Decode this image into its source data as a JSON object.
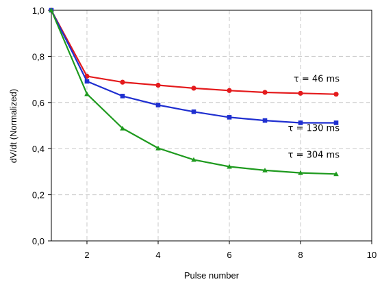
{
  "chart_data": {
    "type": "line",
    "title": "",
    "xlabel": "Pulse number",
    "ylabel": "dV/dt (Normalized)",
    "xlim": [
      1,
      10
    ],
    "ylim": [
      0,
      1
    ],
    "x_ticks": [
      2,
      4,
      6,
      8,
      10
    ],
    "x_tick_labels": [
      "2",
      "4",
      "6",
      "8",
      "10"
    ],
    "y_ticks": [
      0,
      0.2,
      0.4,
      0.6,
      0.8,
      1.0
    ],
    "y_tick_labels": [
      "0,0",
      "0,2",
      "0,4",
      "0,6",
      "0,8",
      "1,0"
    ],
    "grid": true,
    "x": [
      1,
      2,
      3,
      4,
      5,
      6,
      7,
      8,
      9
    ],
    "series": [
      {
        "label": "τ = 46 ms",
        "color": "#e41a1c",
        "marker": "circle",
        "values": [
          1.0,
          0.714,
          0.688,
          0.675,
          0.662,
          0.652,
          0.644,
          0.64,
          0.636
        ]
      },
      {
        "label": "τ = 130 ms",
        "color": "#1f2fd0",
        "marker": "square",
        "values": [
          1.0,
          0.692,
          0.628,
          0.589,
          0.56,
          0.536,
          0.522,
          0.512,
          0.512
        ]
      },
      {
        "label": "τ = 304 ms",
        "color": "#1e9a1e",
        "marker": "triangle",
        "values": [
          1.0,
          0.637,
          0.488,
          0.402,
          0.352,
          0.322,
          0.306,
          0.295,
          0.29
        ]
      }
    ]
  }
}
